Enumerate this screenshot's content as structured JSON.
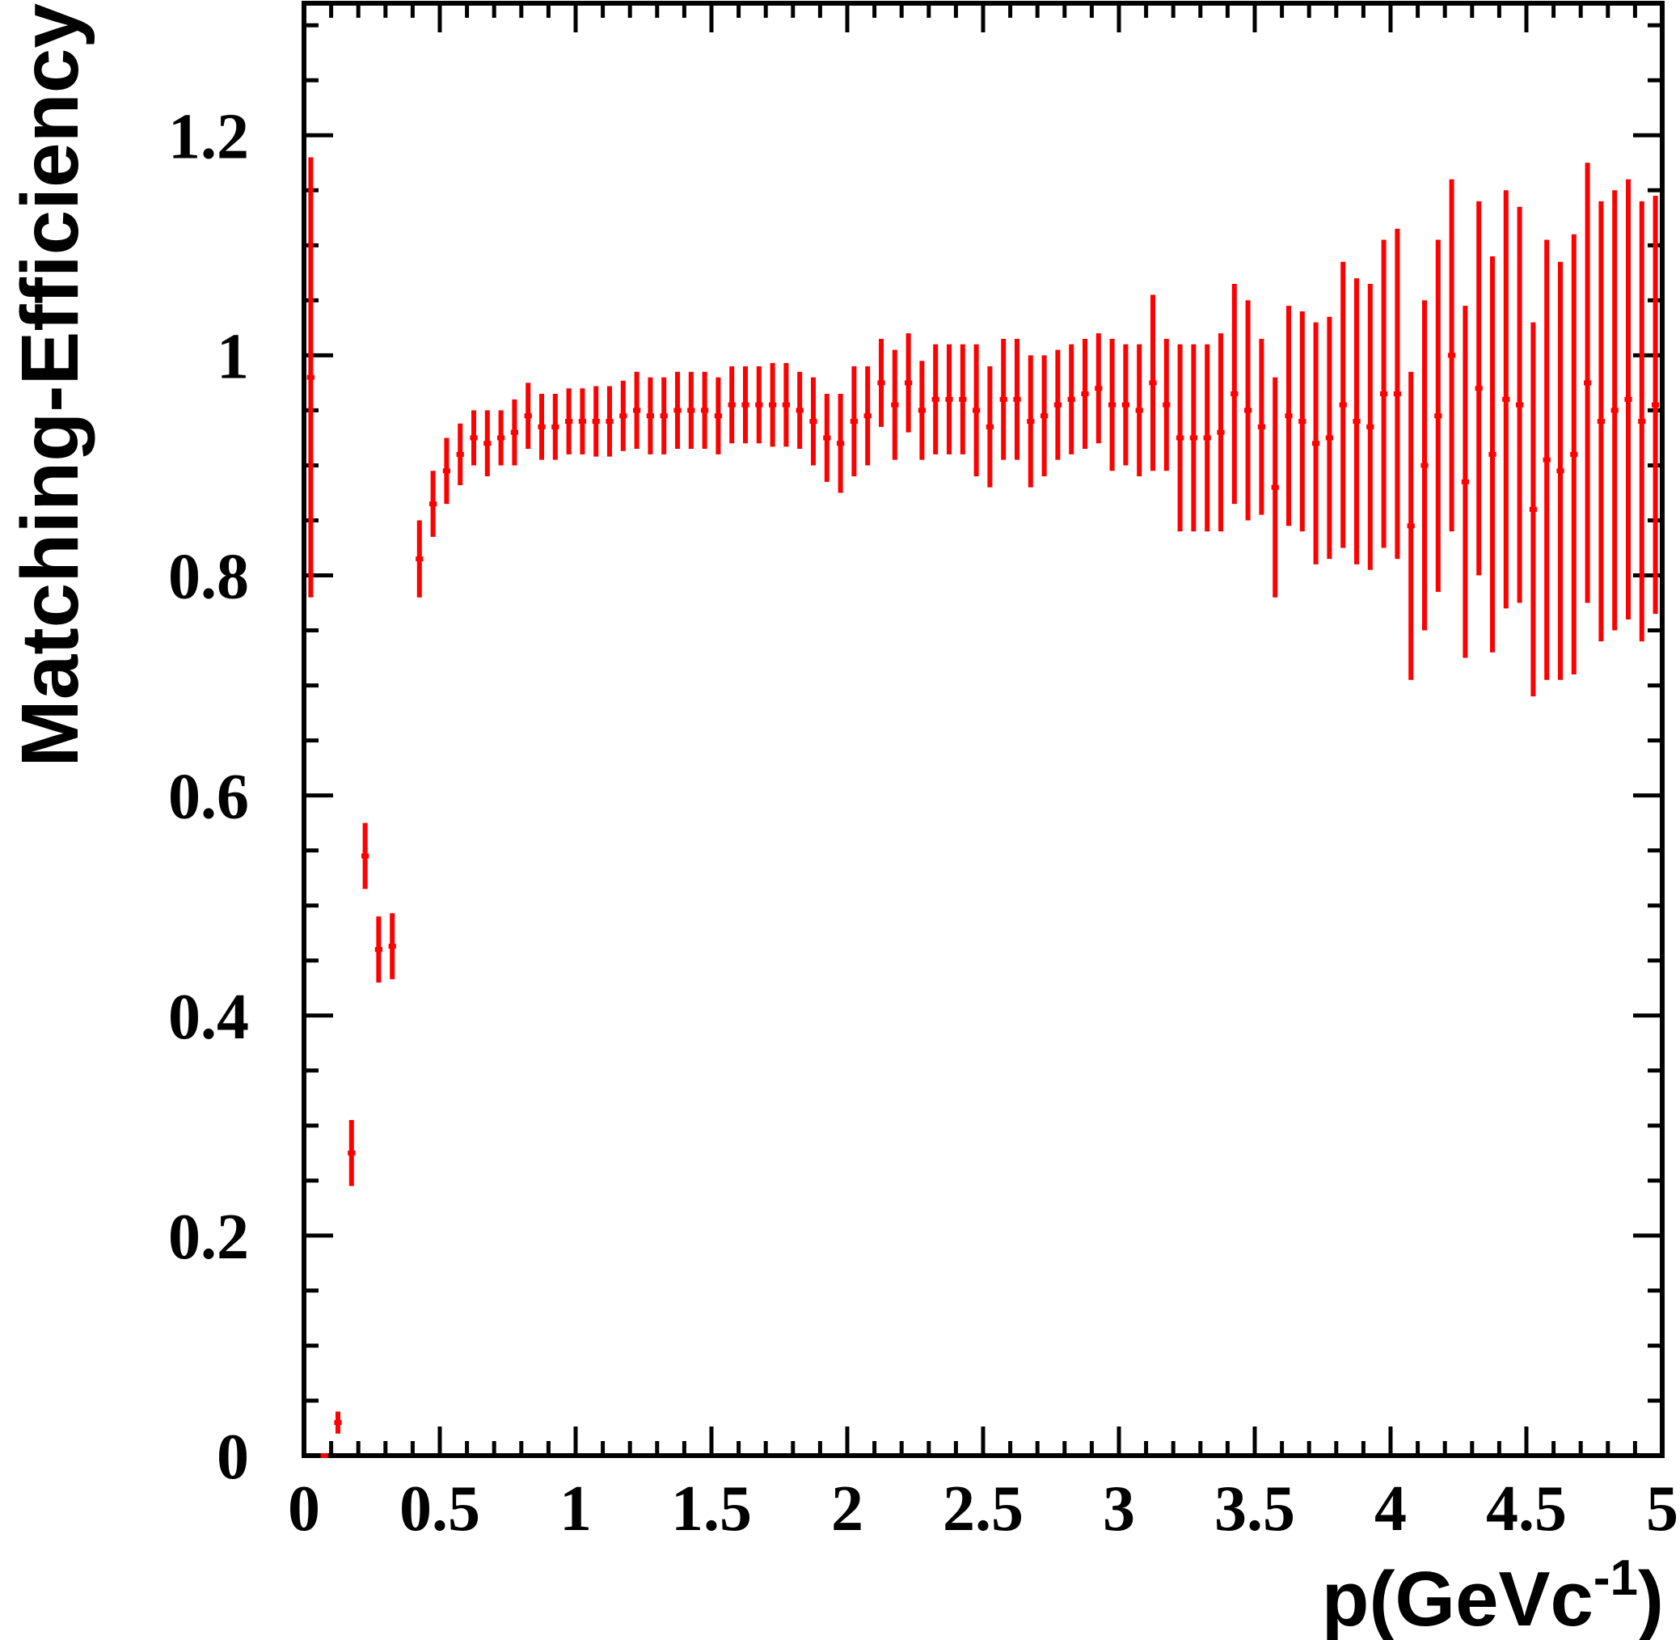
{
  "chart_data": {
    "type": "scatter",
    "title": "",
    "ylabel": "Matching-Efficiency",
    "xlabel": {
      "base": "p(GeVc",
      "sup": "-1",
      "close": ")"
    },
    "xlim": [
      0,
      5
    ],
    "ylim": [
      0,
      1.32
    ],
    "xticks": [
      0,
      0.5,
      1,
      1.5,
      2,
      2.5,
      3,
      3.5,
      4,
      4.5,
      5
    ],
    "xtick_labels": [
      "0",
      "0.5",
      "1",
      "1.5",
      "2",
      "2.5",
      "3",
      "3.5",
      "4",
      "4.5",
      "5"
    ],
    "yticks": [
      0,
      0.2,
      0.4,
      0.6,
      0.8,
      1,
      1.2
    ],
    "ytick_labels": [
      "0",
      "0.2",
      "0.4",
      "0.6",
      "0.8",
      "1",
      "1.2"
    ],
    "grid": false,
    "marker_color": "#ff0000",
    "x_bin_half_width": 0.025,
    "series": [
      {
        "points": [
          [
            0.025,
            0.98,
            0.2
          ],
          [
            0.075,
            0.0,
            0.0
          ],
          [
            0.125,
            0.03,
            0.01
          ],
          [
            0.175,
            0.275,
            0.03
          ],
          [
            0.225,
            0.545,
            0.03
          ],
          [
            0.275,
            0.46,
            0.03
          ],
          [
            0.325,
            0.463,
            0.03
          ],
          [
            0.425,
            0.815,
            0.035
          ],
          [
            0.475,
            0.865,
            0.03
          ],
          [
            0.525,
            0.895,
            0.03
          ],
          [
            0.575,
            0.91,
            0.028
          ],
          [
            0.625,
            0.925,
            0.025
          ],
          [
            0.675,
            0.92,
            0.03
          ],
          [
            0.725,
            0.925,
            0.025
          ],
          [
            0.775,
            0.93,
            0.03
          ],
          [
            0.825,
            0.945,
            0.03
          ],
          [
            0.875,
            0.935,
            0.03
          ],
          [
            0.925,
            0.935,
            0.03
          ],
          [
            0.975,
            0.94,
            0.03
          ],
          [
            1.025,
            0.94,
            0.03
          ],
          [
            1.075,
            0.94,
            0.032
          ],
          [
            1.125,
            0.94,
            0.032
          ],
          [
            1.175,
            0.945,
            0.032
          ],
          [
            1.225,
            0.95,
            0.035
          ],
          [
            1.275,
            0.945,
            0.035
          ],
          [
            1.325,
            0.945,
            0.035
          ],
          [
            1.375,
            0.95,
            0.035
          ],
          [
            1.425,
            0.95,
            0.035
          ],
          [
            1.475,
            0.95,
            0.035
          ],
          [
            1.525,
            0.945,
            0.035
          ],
          [
            1.575,
            0.955,
            0.035
          ],
          [
            1.625,
            0.955,
            0.035
          ],
          [
            1.675,
            0.955,
            0.035
          ],
          [
            1.725,
            0.955,
            0.038
          ],
          [
            1.775,
            0.955,
            0.038
          ],
          [
            1.825,
            0.95,
            0.035
          ],
          [
            1.875,
            0.94,
            0.04
          ],
          [
            1.925,
            0.925,
            0.04
          ],
          [
            1.975,
            0.92,
            0.045
          ],
          [
            2.025,
            0.94,
            0.05
          ],
          [
            2.075,
            0.945,
            0.045
          ],
          [
            2.125,
            0.975,
            0.04
          ],
          [
            2.175,
            0.955,
            0.05
          ],
          [
            2.225,
            0.975,
            0.045
          ],
          [
            2.275,
            0.95,
            0.045
          ],
          [
            2.325,
            0.96,
            0.05
          ],
          [
            2.375,
            0.96,
            0.05
          ],
          [
            2.425,
            0.96,
            0.05
          ],
          [
            2.475,
            0.95,
            0.06
          ],
          [
            2.525,
            0.935,
            0.055
          ],
          [
            2.575,
            0.96,
            0.055
          ],
          [
            2.625,
            0.96,
            0.055
          ],
          [
            2.675,
            0.94,
            0.06
          ],
          [
            2.725,
            0.945,
            0.055
          ],
          [
            2.775,
            0.955,
            0.05
          ],
          [
            2.825,
            0.96,
            0.05
          ],
          [
            2.875,
            0.965,
            0.05
          ],
          [
            2.925,
            0.97,
            0.05
          ],
          [
            2.975,
            0.955,
            0.06
          ],
          [
            3.025,
            0.955,
            0.055
          ],
          [
            3.075,
            0.95,
            0.06
          ],
          [
            3.125,
            0.975,
            0.08
          ],
          [
            3.175,
            0.955,
            0.06
          ],
          [
            3.225,
            0.925,
            0.085
          ],
          [
            3.275,
            0.925,
            0.085
          ],
          [
            3.325,
            0.925,
            0.085
          ],
          [
            3.375,
            0.93,
            0.09
          ],
          [
            3.425,
            0.965,
            0.1
          ],
          [
            3.475,
            0.95,
            0.1
          ],
          [
            3.525,
            0.935,
            0.08
          ],
          [
            3.575,
            0.88,
            0.1
          ],
          [
            3.625,
            0.945,
            0.1
          ],
          [
            3.675,
            0.94,
            0.1
          ],
          [
            3.725,
            0.92,
            0.11
          ],
          [
            3.775,
            0.925,
            0.11
          ],
          [
            3.825,
            0.955,
            0.13
          ],
          [
            3.875,
            0.94,
            0.13
          ],
          [
            3.925,
            0.935,
            0.13
          ],
          [
            3.975,
            0.965,
            0.14
          ],
          [
            4.025,
            0.965,
            0.15
          ],
          [
            4.075,
            0.845,
            0.14
          ],
          [
            4.125,
            0.9,
            0.15
          ],
          [
            4.175,
            0.945,
            0.16
          ],
          [
            4.225,
            1.0,
            0.16
          ],
          [
            4.275,
            0.885,
            0.16
          ],
          [
            4.325,
            0.97,
            0.17
          ],
          [
            4.375,
            0.91,
            0.18
          ],
          [
            4.425,
            0.96,
            0.19
          ],
          [
            4.475,
            0.955,
            0.18
          ],
          [
            4.525,
            0.86,
            0.17
          ],
          [
            4.575,
            0.905,
            0.2
          ],
          [
            4.625,
            0.895,
            0.19
          ],
          [
            4.675,
            0.91,
            0.2
          ],
          [
            4.725,
            0.975,
            0.2
          ],
          [
            4.775,
            0.94,
            0.2
          ],
          [
            4.825,
            0.95,
            0.2
          ],
          [
            4.875,
            0.96,
            0.2
          ],
          [
            4.925,
            0.94,
            0.2
          ],
          [
            4.975,
            0.955,
            0.19
          ]
        ]
      }
    ]
  }
}
